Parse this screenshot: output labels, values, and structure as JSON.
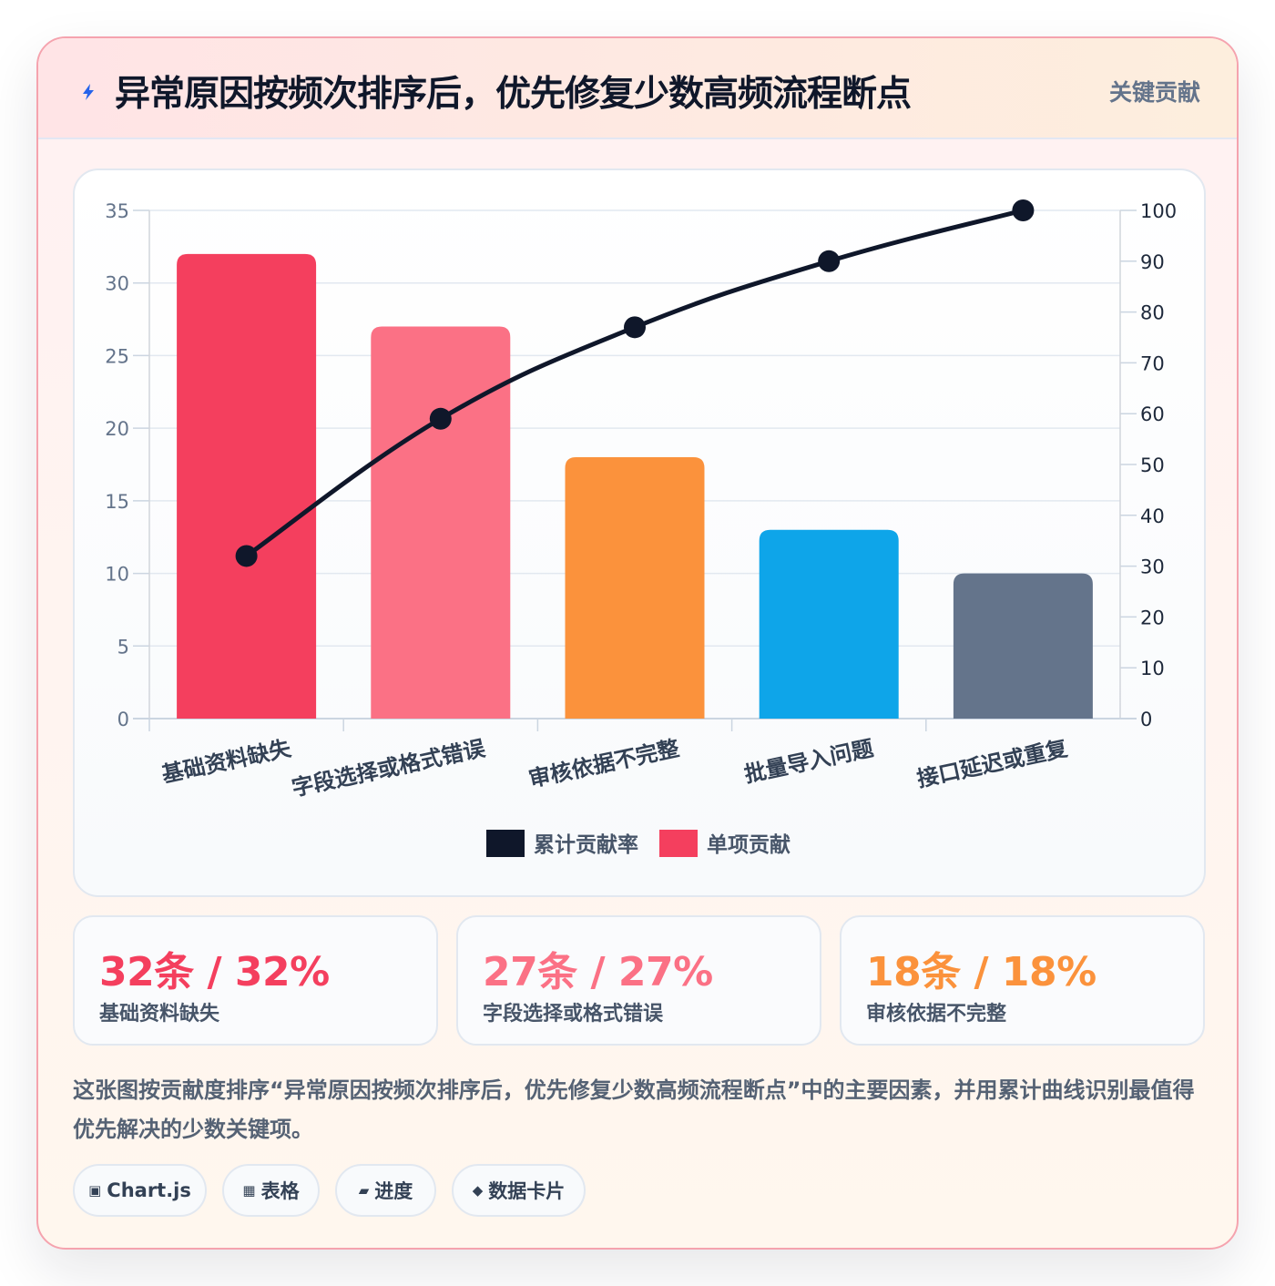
{
  "header": {
    "title": "异常原因按频次排序后，优先修复少数高频流程断点",
    "tag": "关键贡献"
  },
  "colors": {
    "bar1": "#f43f5e",
    "bar2": "#fb7185",
    "bar3": "#fb923c",
    "bar4": "#0ea5e9",
    "bar5": "#64748b",
    "line": "#0f172a"
  },
  "chart_data": {
    "type": "bar",
    "categories": [
      "基础资料缺失",
      "字段选择或格式错误",
      "审核依据不完整",
      "批量导入问题",
      "接口延迟或重复"
    ],
    "series": [
      {
        "name": "单项贡献",
        "type": "bar",
        "axis": "left",
        "values": [
          32,
          27,
          18,
          13,
          10
        ]
      },
      {
        "name": "累计贡献率",
        "type": "line",
        "axis": "right",
        "values": [
          32,
          59,
          77,
          90,
          100
        ]
      }
    ],
    "ylim": [
      0,
      35
    ],
    "y_ticks": [
      0,
      5,
      10,
      15,
      20,
      25,
      30,
      35
    ],
    "y2lim": [
      0,
      100
    ],
    "y2_ticks": [
      0,
      10,
      20,
      30,
      40,
      50,
      60,
      70,
      80,
      90,
      100
    ],
    "legend": [
      {
        "label": "累计贡献率",
        "color": "#0f172a"
      },
      {
        "label": "单项贡献",
        "color": "#f43f5e"
      }
    ],
    "legend_position": "bottom",
    "grid": true
  },
  "stats": [
    {
      "value": "32条 / 32%",
      "label": "基础资料缺失",
      "color": "#f43f5e"
    },
    {
      "value": "27条 / 27%",
      "label": "字段选择或格式错误",
      "color": "#fb7185"
    },
    {
      "value": "18条 / 18%",
      "label": "审核依据不完整",
      "color": "#fb923c"
    }
  ],
  "description": "这张图按贡献度排序“异常原因按频次排序后，优先修复少数高频流程断点”中的主要因素，并用累计曲线识别最值得优先解决的少数关键项。",
  "chips": [
    {
      "icon": "▣",
      "label": "Chart.js"
    },
    {
      "icon": "▦",
      "label": "表格"
    },
    {
      "icon": "▰",
      "label": "进度"
    },
    {
      "icon": "◆",
      "label": "数据卡片"
    }
  ]
}
